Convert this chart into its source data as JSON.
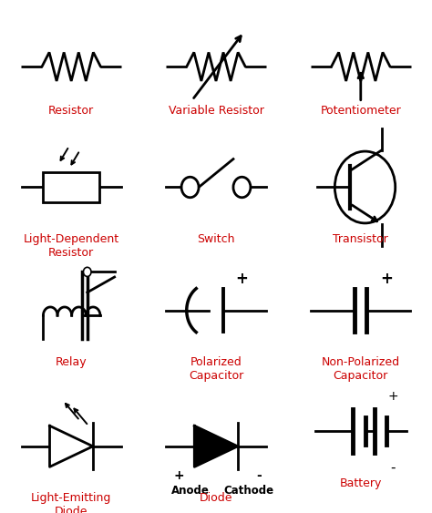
{
  "background_color": "#ffffff",
  "label_color": "#cc0000",
  "symbol_color": "#000000",
  "label_fontsize": 9,
  "figsize": [
    4.74,
    5.63
  ],
  "dpi": 100,
  "cols": [
    0.165,
    0.5,
    0.835
  ],
  "rows": [
    0.87,
    0.635,
    0.395,
    0.13
  ],
  "labels": [
    [
      "Resistor",
      "Variable Resistor",
      "Potentiometer"
    ],
    [
      "Light-Dependent\nResistor",
      "Switch",
      "Transistor"
    ],
    [
      "Relay",
      "Polarized\nCapacitor",
      "Non-Polarized\nCapacitor"
    ],
    [
      "Light-Emitting\nDiode",
      "Diode",
      "Battery"
    ]
  ],
  "lw": 2.0
}
